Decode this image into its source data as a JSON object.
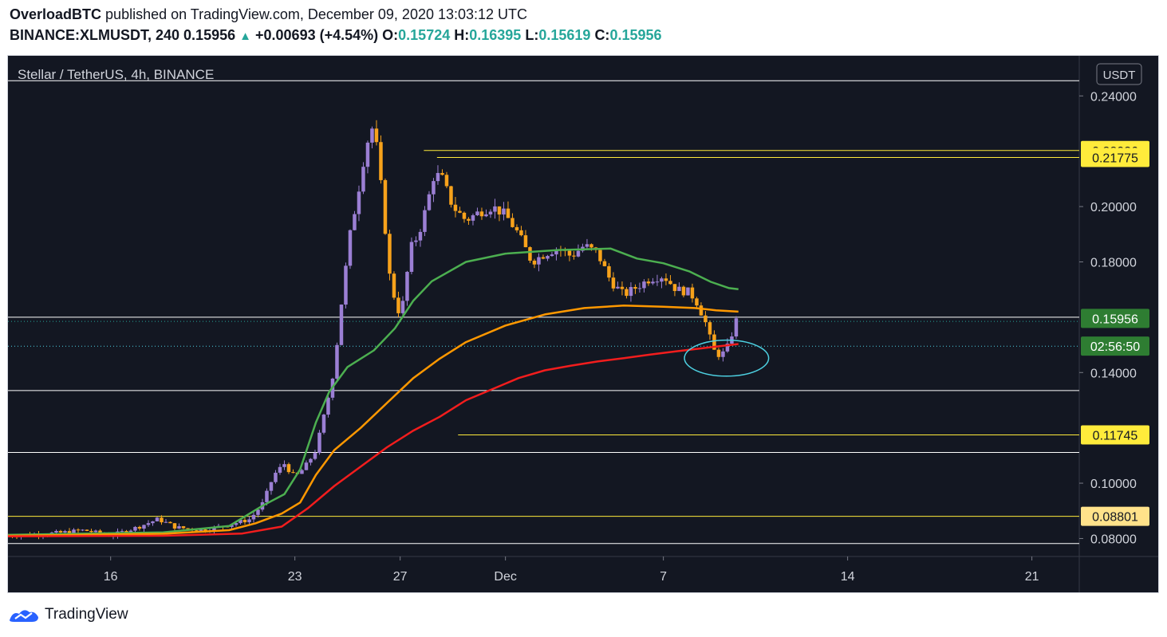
{
  "header": {
    "line1_author": "OverloadBTC",
    "line1_rest": "published on TradingView.com, December 09, 2020 13:03:12 UTC",
    "symbol": "BINANCE:XLMUSDT, 240",
    "last": "0.15956",
    "change": "+0.00693 (+4.54%)",
    "o_label": "O:",
    "o": "0.15724",
    "h_label": "H:",
    "h": "0.16395",
    "l_label": "L:",
    "l": "0.15619",
    "c_label": "C:",
    "c": "0.15956"
  },
  "chart_title": "Stellar / TetherUS, 4h, BINANCE",
  "currency_label": "USDT",
  "footer": {
    "brand": "TradingView"
  },
  "colors": {
    "background": "#131722",
    "candle_up": "#9b7fd4",
    "candle_down": "#f7a21b",
    "ma_fast": "#4caf50",
    "ma_mid": "#ff9800",
    "ma_slow": "#f21d1d",
    "hline_white": "#ffffff",
    "hline_yellow": "#ffeb3b",
    "circle": "#4dd0e1",
    "price_badge": "#2e7d32"
  },
  "chart_data": {
    "type": "candlestick",
    "title": "Stellar / TetherUS, 4h, BINANCE",
    "ylabel": "USDT",
    "ylim": [
      0.0735,
      0.2545
    ],
    "y_ticks": [
      "0.24000",
      "0.20000",
      "0.18000",
      "0.14000",
      "0.10000",
      "0.08000"
    ],
    "x_ticks": [
      {
        "day": 16,
        "label": "16"
      },
      {
        "day": 23,
        "label": "23"
      },
      {
        "day": 27,
        "label": "27"
      },
      {
        "day": 31,
        "label": "Dec"
      },
      {
        "day": 37,
        "label": "7"
      },
      {
        "day": 44,
        "label": "14"
      },
      {
        "day": 51,
        "label": "21"
      }
    ],
    "xlim_days": [
      12.1,
      52.8
    ],
    "price_labels": [
      {
        "value": 0.22026,
        "label": "0.22026",
        "style": "yellow"
      },
      {
        "value": 0.21775,
        "label": "0.21775",
        "style": "yellow"
      },
      {
        "value": 0.15956,
        "label": "0.15956",
        "style": "green"
      },
      {
        "value": 0.14956,
        "label": "02:56:50",
        "style": "green"
      },
      {
        "value": 0.11745,
        "label": "0.11745",
        "style": "yellow"
      },
      {
        "value": 0.08801,
        "label": "0.08801",
        "style": "yellowlight"
      }
    ],
    "horizontal_lines": [
      {
        "value": 0.2455,
        "color": "white",
        "from_day": 12.1
      },
      {
        "value": 0.22026,
        "color": "yellow",
        "from_day": 27.9
      },
      {
        "value": 0.21775,
        "color": "yellow",
        "from_day": 28.4
      },
      {
        "value": 0.16,
        "color": "white",
        "from_day": 12.1
      },
      {
        "value": 0.1335,
        "color": "white",
        "from_day": 12.1
      },
      {
        "value": 0.11745,
        "color": "yellow",
        "from_day": 29.2
      },
      {
        "value": 0.1111,
        "color": "white",
        "from_day": 12.1
      },
      {
        "value": 0.08801,
        "color": "yellow",
        "from_day": 12.1
      },
      {
        "value": 0.0782,
        "color": "white",
        "from_day": 12.1
      }
    ],
    "candles_anchor": [
      [
        12.1,
        0.081
      ],
      [
        14.0,
        0.082
      ],
      [
        15.0,
        0.083
      ],
      [
        16.0,
        0.081
      ],
      [
        17.0,
        0.084
      ],
      [
        17.8,
        0.087
      ],
      [
        18.5,
        0.084
      ],
      [
        19.5,
        0.083
      ],
      [
        20.5,
        0.085
      ],
      [
        21.3,
        0.087
      ],
      [
        21.8,
        0.093
      ],
      [
        22.2,
        0.103
      ],
      [
        22.6,
        0.107
      ],
      [
        23.0,
        0.102
      ],
      [
        23.4,
        0.106
      ],
      [
        23.8,
        0.112
      ],
      [
        24.2,
        0.128
      ],
      [
        24.5,
        0.142
      ],
      [
        24.8,
        0.168
      ],
      [
        25.1,
        0.19
      ],
      [
        25.4,
        0.205
      ],
      [
        25.7,
        0.222
      ],
      [
        26.0,
        0.23
      ],
      [
        26.3,
        0.205
      ],
      [
        26.6,
        0.175
      ],
      [
        26.9,
        0.162
      ],
      [
        27.1,
        0.165
      ],
      [
        27.4,
        0.185
      ],
      [
        27.7,
        0.19
      ],
      [
        28.0,
        0.2
      ],
      [
        28.3,
        0.212
      ],
      [
        28.6,
        0.21
      ],
      [
        29.0,
        0.2
      ],
      [
        29.5,
        0.195
      ],
      [
        30.0,
        0.198
      ],
      [
        30.5,
        0.2
      ],
      [
        31.0,
        0.197
      ],
      [
        31.5,
        0.19
      ],
      [
        32.0,
        0.18
      ],
      [
        32.5,
        0.183
      ],
      [
        33.0,
        0.185
      ],
      [
        33.5,
        0.182
      ],
      [
        34.0,
        0.186
      ],
      [
        34.5,
        0.183
      ],
      [
        35.0,
        0.173
      ],
      [
        35.5,
        0.168
      ],
      [
        36.0,
        0.171
      ],
      [
        36.5,
        0.174
      ],
      [
        37.0,
        0.175
      ],
      [
        37.5,
        0.17
      ],
      [
        38.0,
        0.169
      ],
      [
        38.3,
        0.165
      ],
      [
        38.6,
        0.158
      ],
      [
        38.9,
        0.148
      ],
      [
        39.2,
        0.146
      ],
      [
        39.5,
        0.15
      ],
      [
        39.7,
        0.158
      ],
      [
        39.85,
        0.15956
      ]
    ],
    "ma_fast": [
      [
        12.1,
        0.0813
      ],
      [
        18,
        0.0822
      ],
      [
        20.5,
        0.0845
      ],
      [
        21.8,
        0.092
      ],
      [
        22.6,
        0.096
      ],
      [
        23.2,
        0.105
      ],
      [
        23.8,
        0.122
      ],
      [
        24.3,
        0.133
      ],
      [
        25.0,
        0.142
      ],
      [
        26.0,
        0.148
      ],
      [
        26.8,
        0.156
      ],
      [
        27.5,
        0.166
      ],
      [
        28.2,
        0.173
      ],
      [
        29.5,
        0.18
      ],
      [
        31.0,
        0.183
      ],
      [
        33.0,
        0.1843
      ],
      [
        35.0,
        0.1848
      ],
      [
        36.0,
        0.1812
      ],
      [
        37.0,
        0.1795
      ],
      [
        38.0,
        0.1765
      ],
      [
        38.8,
        0.1728
      ],
      [
        39.5,
        0.1705
      ],
      [
        39.85,
        0.1701
      ]
    ],
    "ma_mid": [
      [
        12.1,
        0.081
      ],
      [
        18,
        0.0817
      ],
      [
        20.5,
        0.083
      ],
      [
        21.5,
        0.0855
      ],
      [
        22.5,
        0.089
      ],
      [
        23.2,
        0.093
      ],
      [
        23.8,
        0.103
      ],
      [
        24.5,
        0.112
      ],
      [
        25.5,
        0.12
      ],
      [
        26.5,
        0.129
      ],
      [
        27.5,
        0.138
      ],
      [
        28.5,
        0.145
      ],
      [
        29.5,
        0.151
      ],
      [
        31.0,
        0.157
      ],
      [
        32.5,
        0.161
      ],
      [
        34.0,
        0.1633
      ],
      [
        35.5,
        0.1642
      ],
      [
        37.0,
        0.1638
      ],
      [
        38.2,
        0.1633
      ],
      [
        39.0,
        0.1625
      ],
      [
        39.85,
        0.162
      ]
    ],
    "ma_slow": [
      [
        12.1,
        0.0808
      ],
      [
        18,
        0.081
      ],
      [
        21,
        0.0818
      ],
      [
        22.5,
        0.0843
      ],
      [
        23.5,
        0.091
      ],
      [
        24.5,
        0.099
      ],
      [
        25.5,
        0.106
      ],
      [
        26.5,
        0.113
      ],
      [
        27.5,
        0.119
      ],
      [
        28.5,
        0.124
      ],
      [
        29.5,
        0.13
      ],
      [
        30.5,
        0.134
      ],
      [
        31.5,
        0.138
      ],
      [
        32.5,
        0.1408
      ],
      [
        33.5,
        0.1425
      ],
      [
        34.5,
        0.144
      ],
      [
        35.5,
        0.1452
      ],
      [
        36.5,
        0.1465
      ],
      [
        37.5,
        0.1477
      ],
      [
        38.5,
        0.1488
      ],
      [
        39.2,
        0.1496
      ],
      [
        39.85,
        0.1503
      ]
    ],
    "annotation": {
      "type": "ellipse",
      "center_day": 39.4,
      "center_value": 0.1452,
      "rx_days": 1.6,
      "ry_value": 0.0065
    }
  }
}
